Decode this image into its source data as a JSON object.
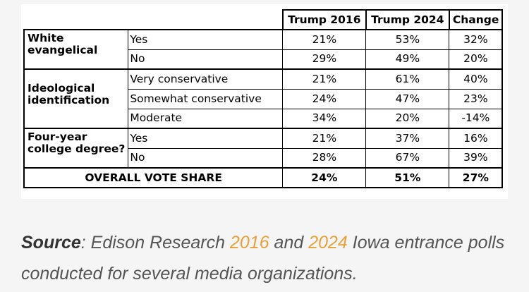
{
  "table": {
    "headers": [
      "Trump 2016",
      "Trump 2024",
      "Change"
    ],
    "groups": [
      {
        "label_lines": [
          "White",
          "evangelical"
        ],
        "rows": [
          {
            "label": "Yes",
            "values": [
              "21%",
              "53%",
              "32%"
            ]
          },
          {
            "label": "No",
            "values": [
              "29%",
              "49%",
              "20%"
            ]
          }
        ]
      },
      {
        "label_lines": [
          "Ideological",
          "identification"
        ],
        "rows": [
          {
            "label": "Very conservative",
            "values": [
              "21%",
              "61%",
              "40%"
            ]
          },
          {
            "label": "Somewhat conservative",
            "values": [
              "24%",
              "47%",
              "23%"
            ]
          },
          {
            "label": "Moderate",
            "values": [
              "34%",
              "20%",
              "-14%"
            ]
          }
        ]
      },
      {
        "label_lines": [
          "Four-year",
          "college degree?"
        ],
        "rows": [
          {
            "label": "Yes",
            "values": [
              "21%",
              "37%",
              "16%"
            ]
          },
          {
            "label": "No",
            "values": [
              "28%",
              "67%",
              "39%"
            ]
          }
        ]
      }
    ],
    "overall": {
      "label": "OVERALL VOTE SHARE",
      "values": [
        "24%",
        "51%",
        "27%"
      ]
    }
  },
  "caption": {
    "source_label": "Source",
    "text_1": ": Edison Research ",
    "link_2016": "2016",
    "text_2": " and ",
    "link_2024": "2024",
    "text_3": " Iowa entrance polls conducted for several media organizations."
  },
  "colors": {
    "link": "#e8a03a",
    "caption_text": "#555555"
  }
}
